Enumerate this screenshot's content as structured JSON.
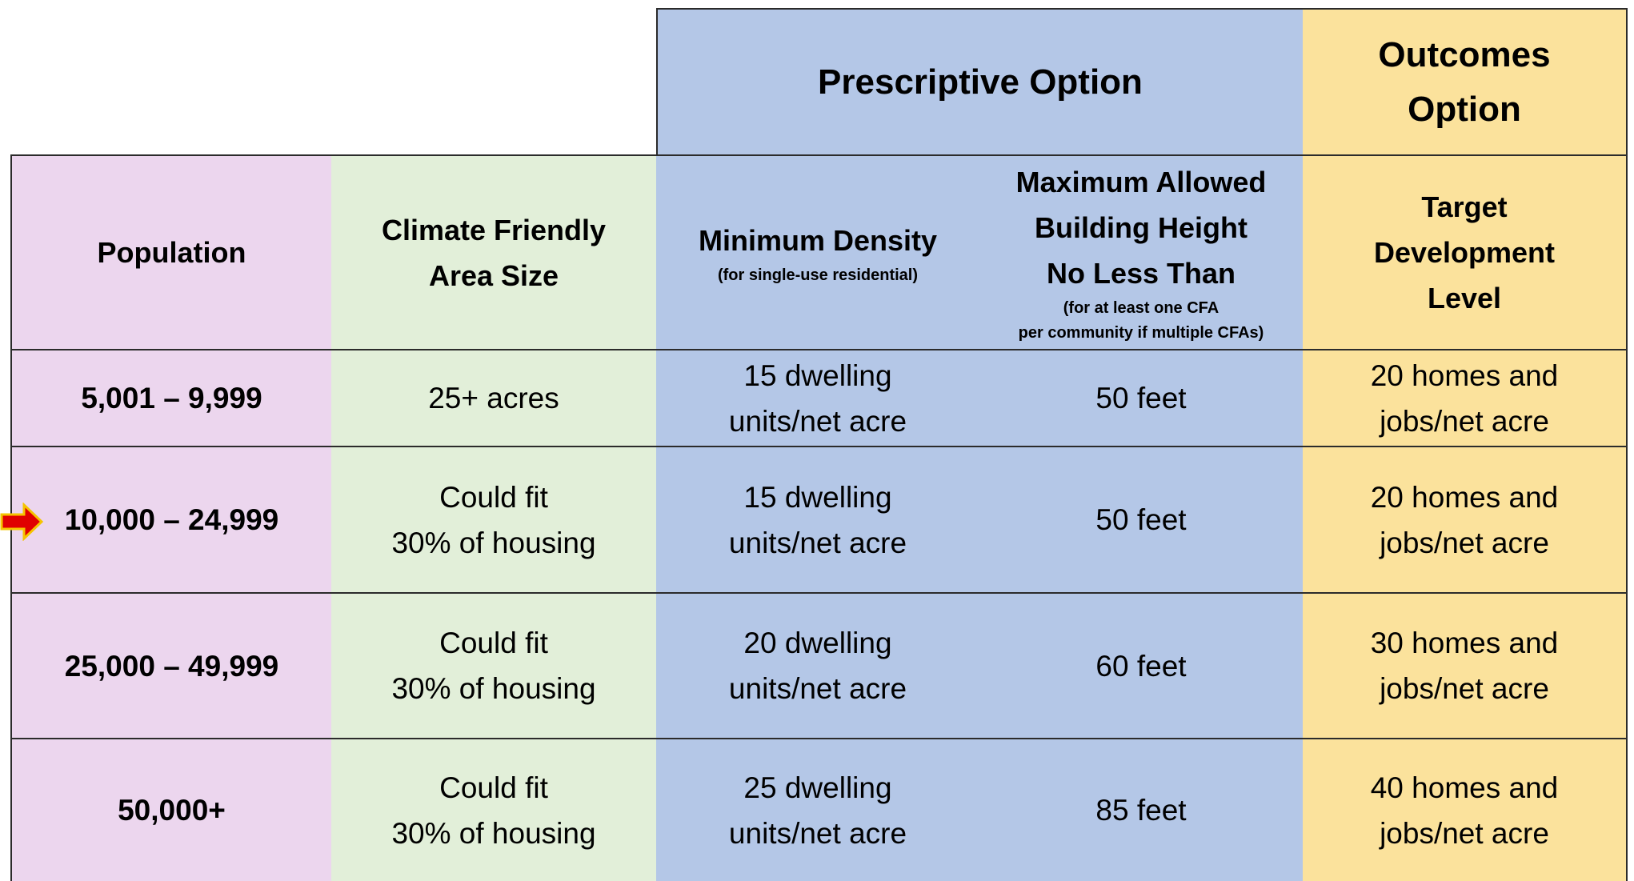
{
  "group_headers": [
    {
      "lines": [
        "Prescriptive Option"
      ]
    },
    {
      "lines": [
        "Outcomes",
        "Option"
      ]
    }
  ],
  "columns": [
    {
      "lines": [
        "Population"
      ]
    },
    {
      "lines": [
        "Climate Friendly",
        "Area Size"
      ]
    },
    {
      "lines": [
        "Minimum Density"
      ],
      "note": [
        "(for single-use residential)"
      ]
    },
    {
      "lines": [
        "Maximum Allowed",
        "Building Height",
        "No Less Than"
      ],
      "note": [
        "(for at least one CFA",
        "per community if multiple CFAs)"
      ]
    },
    {
      "lines": [
        "Target",
        "Development",
        "Level"
      ]
    }
  ],
  "rows": [
    [
      [
        "5,001 – 9,999"
      ],
      [
        "25+ acres"
      ],
      [
        "15 dwelling",
        "units/net acre"
      ],
      [
        "50 feet"
      ],
      [
        "20 homes and",
        "jobs/net acre"
      ]
    ],
    [
      [
        "10,000 – 24,999"
      ],
      [
        "Could fit",
        "30% of housing"
      ],
      [
        "15 dwelling",
        "units/net acre"
      ],
      [
        "50 feet"
      ],
      [
        "20 homes and",
        "jobs/net acre"
      ]
    ],
    [
      [
        "25,000 – 49,999"
      ],
      [
        "Could fit",
        "30% of housing"
      ],
      [
        "20 dwelling",
        "units/net acre"
      ],
      [
        "60 feet"
      ],
      [
        "30 homes and",
        "jobs/net acre"
      ]
    ],
    [
      [
        "50,000+"
      ],
      [
        "Could fit",
        "30% of housing"
      ],
      [
        "25 dwelling",
        "units/net acre"
      ],
      [
        "85 feet"
      ],
      [
        "40 homes and",
        "jobs/net acre"
      ]
    ]
  ]
}
